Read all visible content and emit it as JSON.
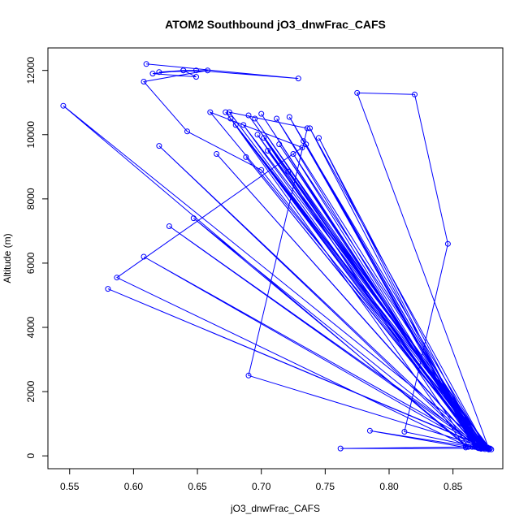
{
  "chart_data": {
    "type": "line",
    "title": "ATOM2 Southbound jO3_dnwFrac_CAFS",
    "xlabel": "jO3_dnwFrac_CAFS",
    "ylabel": "Altitude (m)",
    "xlim": [
      0.533,
      0.889
    ],
    "ylim": [
      -400,
      12700
    ],
    "x_ticks": [
      "0.55",
      "0.60",
      "0.65",
      "0.70",
      "0.75",
      "0.80",
      "0.85"
    ],
    "x_tick_values": [
      0.55,
      0.6,
      0.65,
      0.7,
      0.75,
      0.8,
      0.85
    ],
    "y_ticks": [
      "0",
      "2000",
      "4000",
      "6000",
      "8000",
      "10000",
      "12000"
    ],
    "y_tick_values": [
      0,
      2000,
      4000,
      6000,
      8000,
      10000,
      12000
    ],
    "grid": false,
    "legend": "none",
    "color": "#0000ff",
    "markers": "open-circle",
    "series": [
      {
        "x": [
          0.61,
          0.729,
          0.649,
          0.639,
          0.615,
          0.649,
          0.639,
          0.62,
          0.658,
          0.608,
          0.642,
          0.7,
          0.872,
          0.878,
          0.86,
          0.545,
          0.878,
          0.775,
          0.82,
          0.846,
          0.812,
          0.878,
          0.86,
          0.877,
          0.66,
          0.732,
          0.587,
          0.862,
          0.88,
          0.58,
          0.878,
          0.69,
          0.736,
          0.675,
          0.872,
          0.608,
          0.87,
          0.62,
          0.867,
          0.735,
          0.872,
          0.628,
          0.875,
          0.69,
          0.878,
          0.762,
          0.865,
          0.785,
          0.86,
          0.676,
          0.87,
          0.7,
          0.872,
          0.695,
          0.875,
          0.712,
          0.868,
          0.738,
          0.876,
          0.722,
          0.87,
          0.647,
          0.862,
          0.702,
          0.873,
          0.714,
          0.87,
          0.686,
          0.879,
          0.672,
          0.872,
          0.733,
          0.869,
          0.725,
          0.877,
          0.68,
          0.874,
          0.721,
          0.872,
          0.688,
          0.872,
          0.745,
          0.868,
          0.697,
          0.876,
          0.705,
          0.87,
          0.665,
          0.87
        ],
        "y": [
          12200,
          11750,
          12000,
          12000,
          11900,
          11800,
          12000,
          11950,
          12000,
          11650,
          10100,
          8900,
          250,
          200,
          300,
          10900,
          230,
          11300,
          11250,
          6600,
          750,
          200,
          300,
          260,
          10700,
          9600,
          5550,
          280,
          200,
          5200,
          220,
          2500,
          10200,
          10700,
          300,
          6200,
          250,
          9650,
          280,
          9700,
          230,
          7150,
          210,
          10600,
          230,
          230,
          280,
          780,
          260,
          10500,
          240,
          10650,
          220,
          10500,
          250,
          10500,
          280,
          10200,
          240,
          10550,
          250,
          7400,
          280,
          9900,
          250,
          9700,
          260,
          10300,
          230,
          10700,
          240,
          9800,
          260,
          9400,
          230,
          10300,
          240,
          8850,
          280,
          9300,
          250,
          9900,
          280,
          10000,
          260,
          9500,
          240,
          9400,
          260
        ]
      }
    ]
  }
}
